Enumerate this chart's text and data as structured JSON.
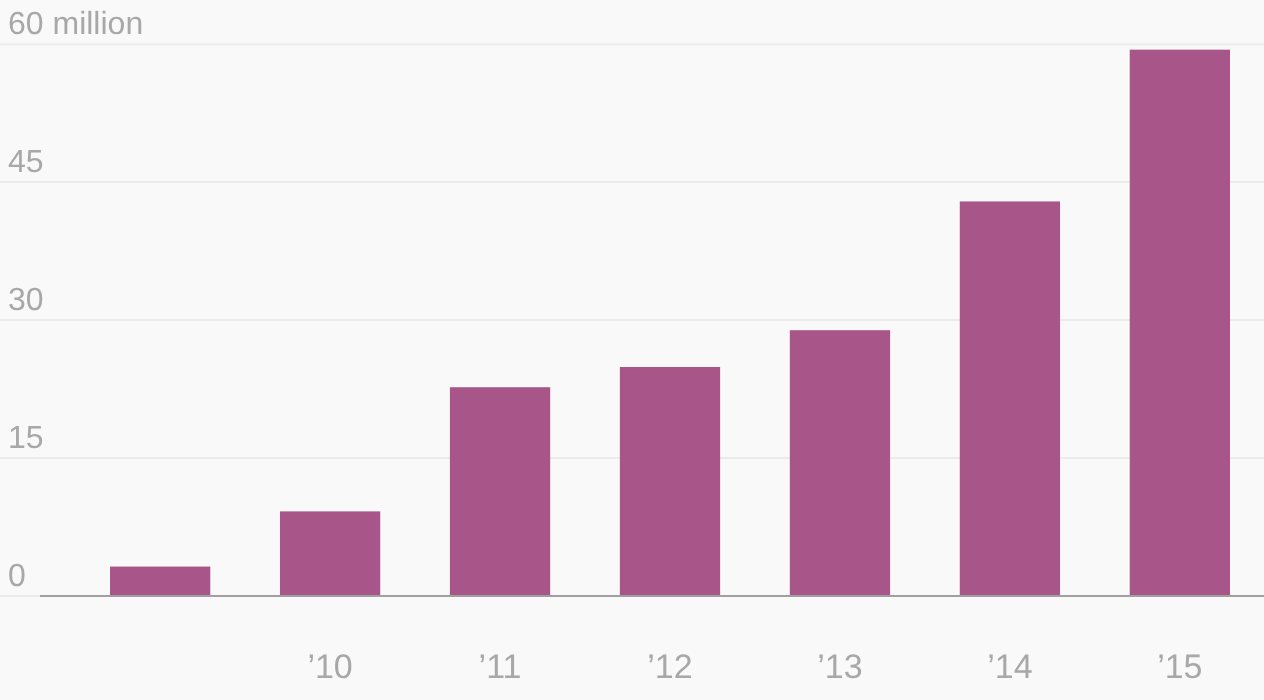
{
  "chart_data": {
    "type": "bar",
    "categories": [
      null,
      "’10",
      "’11",
      "’12",
      "’13",
      "’14",
      "’15"
    ],
    "values": [
      3.2,
      9.2,
      22.7,
      24.9,
      28.9,
      42.9,
      59.4
    ],
    "color": "#a8568a",
    "ylim": [
      0,
      64.8
    ],
    "yticks": [
      0,
      15,
      30,
      45,
      {
        "value": 60,
        "label": "60 million"
      }
    ],
    "grid": "y"
  }
}
